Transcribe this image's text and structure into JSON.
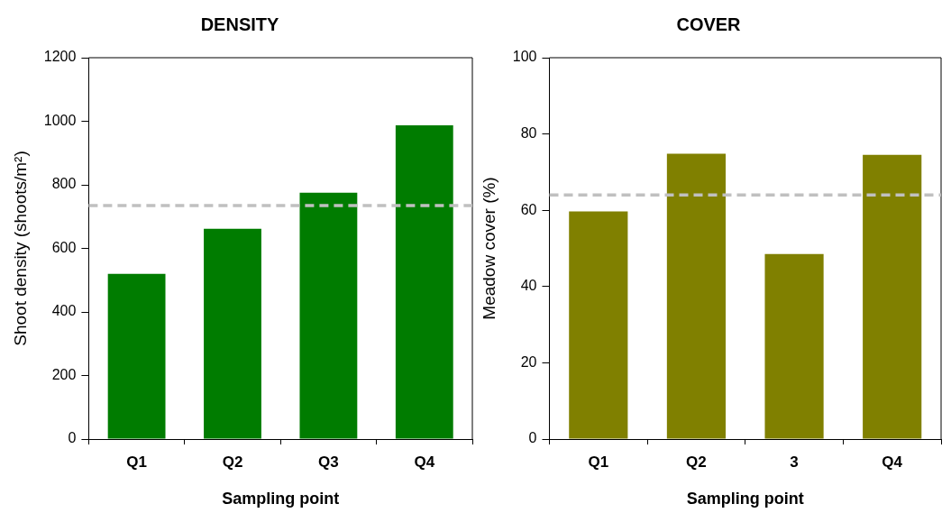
{
  "chart_data": [
    {
      "type": "bar",
      "title": "DENSITY",
      "xlabel": "Sampling point",
      "ylabel": "Shoot density (shoots/m²)",
      "categories": [
        "Q1",
        "Q2",
        "Q3",
        "Q4"
      ],
      "values": [
        520,
        662,
        775,
        987
      ],
      "color": "#007c00",
      "ylim": [
        0,
        1200
      ],
      "yticks": [
        0,
        200,
        400,
        600,
        800,
        1000,
        1200
      ],
      "grid": false,
      "legend": false,
      "ref_lines": [
        {
          "axis": "y",
          "value": 735,
          "color": "#c0c0c0",
          "line_style": "dashed"
        }
      ]
    },
    {
      "type": "bar",
      "title": "COVER",
      "xlabel": "Sampling point",
      "ylabel": "Meadow cover (%)",
      "categories": [
        "Q1",
        "Q2",
        "3",
        "Q4"
      ],
      "values": [
        59.7,
        74.8,
        48.5,
        74.5
      ],
      "color": "#808000",
      "ylim": [
        0,
        100
      ],
      "yticks": [
        0,
        20,
        40,
        60,
        80,
        100
      ],
      "grid": false,
      "legend": false,
      "ref_lines": [
        {
          "axis": "y",
          "value": 64,
          "color": "#c0c0c0",
          "line_style": "dashed"
        }
      ]
    }
  ]
}
